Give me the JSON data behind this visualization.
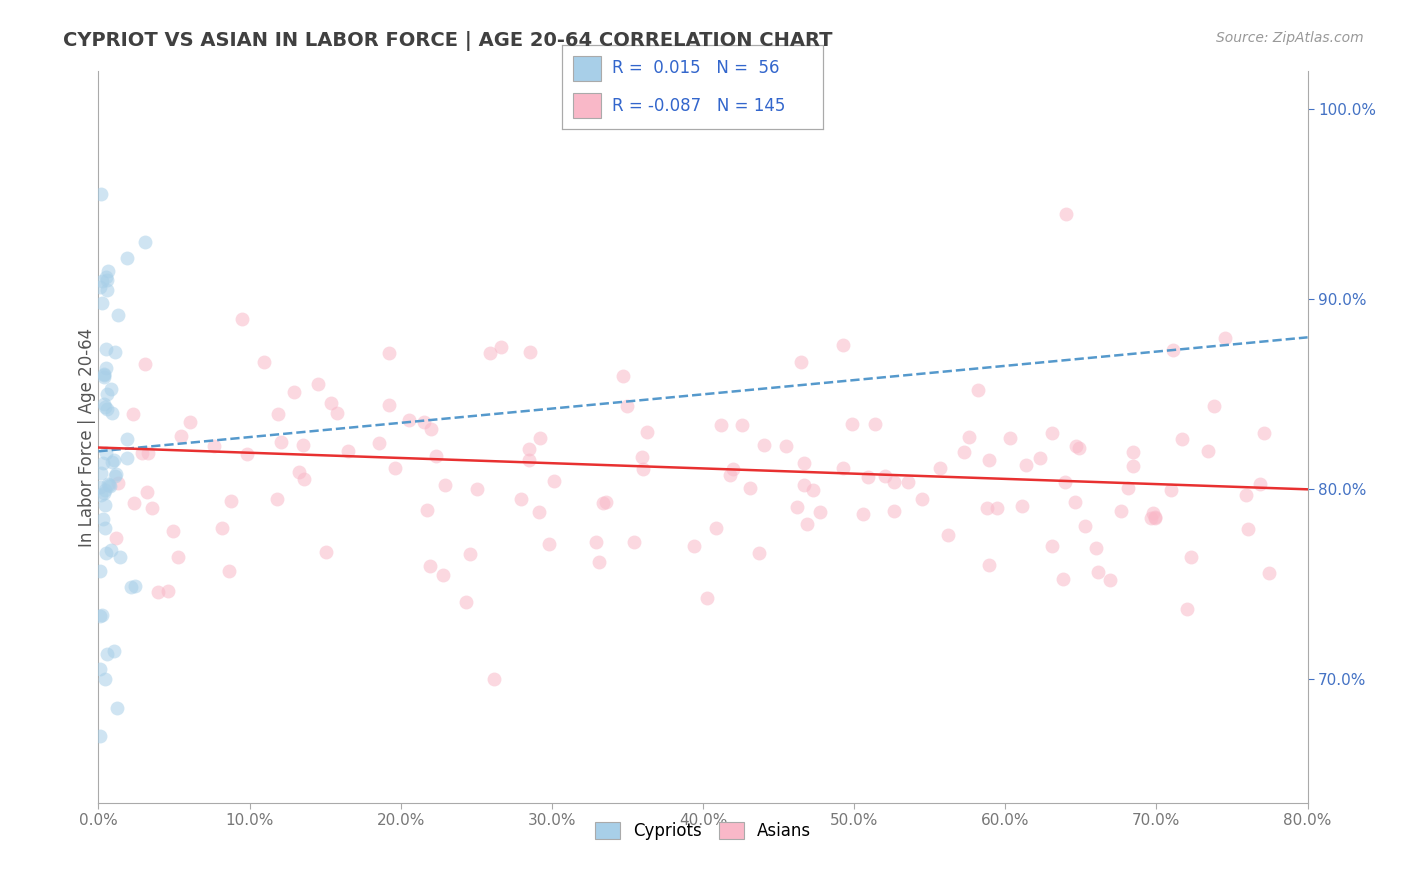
{
  "title": "CYPRIOT VS ASIAN IN LABOR FORCE | AGE 20-64 CORRELATION CHART",
  "source_text": "Source: ZipAtlas.com",
  "ylabel": "In Labor Force | Age 20-64",
  "xlim": [
    0.0,
    0.8
  ],
  "ylim": [
    0.635,
    1.02
  ],
  "xtick_labels": [
    "0.0%",
    "10.0%",
    "20.0%",
    "30.0%",
    "40.0%",
    "50.0%",
    "60.0%",
    "70.0%",
    "80.0%"
  ],
  "xtick_vals": [
    0.0,
    0.1,
    0.2,
    0.3,
    0.4,
    0.5,
    0.6,
    0.7,
    0.8
  ],
  "ytick_labels": [
    "100.0%",
    "90.0%",
    "80.0%",
    "70.0%"
  ],
  "ytick_vals": [
    1.0,
    0.9,
    0.8,
    0.7
  ],
  "cypriot_color": "#a8cfe8",
  "asian_color": "#f9b8c8",
  "trend_cypriot_color": "#5599cc",
  "trend_asian_color": "#e83030",
  "R_cypriot": 0.015,
  "N_cypriot": 56,
  "R_asian": -0.087,
  "N_asian": 145,
  "background_color": "#ffffff",
  "grid_color": "#cccccc",
  "title_color": "#404040",
  "legend_label_cypriot": "Cypriots",
  "legend_label_asian": "Asians",
  "marker_size": 100,
  "marker_alpha": 0.55
}
